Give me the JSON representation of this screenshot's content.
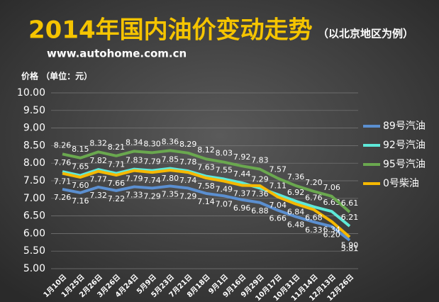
{
  "chart_data": {
    "type": "line",
    "title": "2014年国内油价变动走势",
    "subtitle": "（以北京地区为例）",
    "source": "www.autohome.com.cn",
    "y_label": "价格 （单位：元）",
    "categories": [
      "1月10日",
      "1月25日",
      "2月26日",
      "3月26日",
      "4月24日",
      "5月9日",
      "5月23日",
      "7月21日",
      "8月18日",
      "9月1日",
      "9月16日",
      "9月29日",
      "10月17日",
      "10月31日",
      "11月14日",
      "12月13日",
      "12月26日"
    ],
    "series": [
      {
        "name": "89号汽油",
        "color": "#5b8fd0",
        "label_pos": "below",
        "values": [
          7.26,
          7.16,
          7.32,
          7.22,
          7.33,
          7.29,
          7.35,
          7.29,
          7.14,
          7.07,
          6.96,
          6.88,
          6.66,
          6.48,
          6.33,
          6.2,
          5.81
        ],
        "value_labels": [
          "7.26",
          "7.16",
          "7.32",
          "7.22",
          "7.33",
          "7.29",
          "7.35",
          "7.29",
          "7.14",
          "7.07",
          "6.96",
          "6.88",
          "6.66",
          "6.48",
          "6.33",
          "6.20",
          "5.81"
        ]
      },
      {
        "name": "92号汽油",
        "color": "#5ee8d8",
        "label_pos": "above",
        "values": [
          7.76,
          7.65,
          7.82,
          7.71,
          7.83,
          7.79,
          7.85,
          7.78,
          7.63,
          7.55,
          7.44,
          7.29,
          7.11,
          6.92,
          6.76,
          6.63,
          6.21
        ],
        "value_labels": [
          "7.76",
          "7.65",
          "7.82",
          "7.71",
          "7.83",
          "7.79",
          "7.85",
          "7.78",
          "7.63",
          "7.55",
          "7.44",
          "7.29",
          "7.11",
          "6.92",
          "6.76",
          "6.63",
          "6.21"
        ]
      },
      {
        "name": "95号汽油",
        "color": "#6aa84f",
        "label_pos": "above",
        "values": [
          8.26,
          8.15,
          8.32,
          8.21,
          8.34,
          8.3,
          8.36,
          8.29,
          8.12,
          8.03,
          7.92,
          7.83,
          7.57,
          7.36,
          7.2,
          7.06,
          6.61
        ],
        "value_labels": [
          "8.26",
          "8.15",
          "8.32",
          "8.21",
          "8.34",
          "8.30",
          "8.36",
          "8.29",
          "8.12",
          "8.03",
          "7.92",
          "7.83",
          "7.57",
          "7.36",
          "7.20",
          "7.06",
          "6.61"
        ]
      },
      {
        "name": "0号柴油",
        "color": "#f5b800",
        "label_pos": "below",
        "values": [
          7.71,
          7.6,
          7.77,
          7.66,
          7.79,
          7.74,
          7.8,
          7.74,
          7.58,
          7.49,
          7.37,
          7.36,
          7.04,
          6.84,
          6.68,
          6.34,
          5.9
        ],
        "value_labels": [
          "7.71",
          "7.60",
          "7.77",
          "7.66",
          "7.79",
          "7.74",
          "7.80",
          "7.74",
          "7.58",
          "7.49",
          "7.37",
          "7.36",
          "7.04",
          "6.84",
          "6.68",
          "6.34",
          "5.90"
        ]
      }
    ],
    "ylim": [
      5,
      10
    ],
    "yticks": [
      {
        "value": 5,
        "label": "5.00"
      },
      {
        "value": 5.5,
        "label": "5.50"
      },
      {
        "value": 6,
        "label": "6.00"
      },
      {
        "value": 6.5,
        "label": "6.50"
      },
      {
        "value": 7,
        "label": "7.00"
      },
      {
        "value": 7.5,
        "label": "7.50"
      },
      {
        "value": 8,
        "label": "8.00"
      },
      {
        "value": 8.5,
        "label": "8.50"
      },
      {
        "value": 9,
        "label": "9.00"
      },
      {
        "value": 9.5,
        "label": "9.50"
      },
      {
        "value": 10,
        "label": "10.00"
      }
    ],
    "grid": true,
    "legend": "right"
  }
}
